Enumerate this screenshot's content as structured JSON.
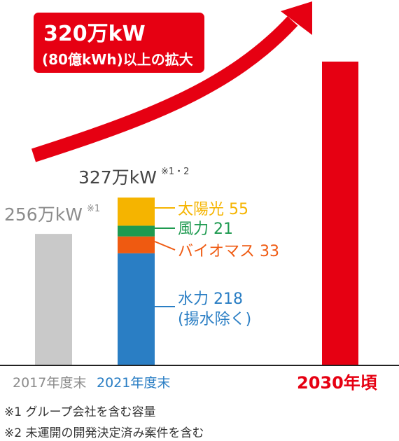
{
  "colors": {
    "accent_red": "#e60012",
    "bar_2017": "#c9c9c9",
    "solar": "#f5b400",
    "wind": "#1e9a50",
    "biomass": "#ef5a11",
    "hydro": "#2a7ec4",
    "label_gray": "#8c8c8c",
    "label_dark": "#444444",
    "baseline": "#222222"
  },
  "callout": {
    "line1": "320万kW",
    "line2": "(80億kWh)以上の拡大"
  },
  "chart_data": {
    "type": "bar",
    "unit": "万kW",
    "categories": [
      "2017年度末",
      "2021年度末",
      "2030年頃"
    ],
    "bars": [
      {
        "category": "2017年度末",
        "total": 256,
        "total_label": "256万kW",
        "note_mark": "※1"
      },
      {
        "category": "2021年度末",
        "total": 327,
        "total_label": "327万kW",
        "note_mark": "※1・2",
        "stack": [
          {
            "name": "水力",
            "value": 218,
            "label_line1": "水力 218",
            "label_line2": "(揚水除く)"
          },
          {
            "name": "バイオマス",
            "value": 33,
            "label_line1": "バイオマス 33"
          },
          {
            "name": "風力",
            "value": 21,
            "label_line1": "風力 21"
          },
          {
            "name": "太陽光",
            "value": 55,
            "label_line1": "太陽光 55"
          }
        ]
      },
      {
        "category": "2030年頃",
        "total": 647
      }
    ],
    "arrow_annotation": "320万kW (80億kWh)以上の拡大",
    "grid": false,
    "legend": "none (labels beside segments)"
  },
  "footnotes": [
    "※1 グループ会社を含む容量",
    "※2 未運開の開発決定済み案件を含む"
  ]
}
